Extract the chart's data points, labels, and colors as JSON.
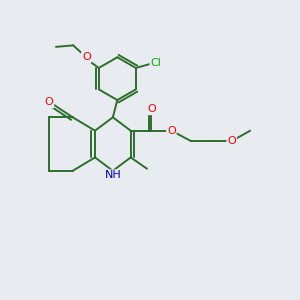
{
  "bg_color": "#e8ecf0",
  "bond_color": "#2d6e2d",
  "bond_width": 1.4,
  "atom_colors": {
    "O": "#ff0000",
    "N": "#0000cc",
    "Cl": "#00aa00",
    "C": "#2d6e2d"
  },
  "figsize": [
    3.0,
    3.0
  ],
  "dpi": 100,
  "xlim": [
    0,
    10
  ],
  "ylim": [
    0,
    10
  ]
}
